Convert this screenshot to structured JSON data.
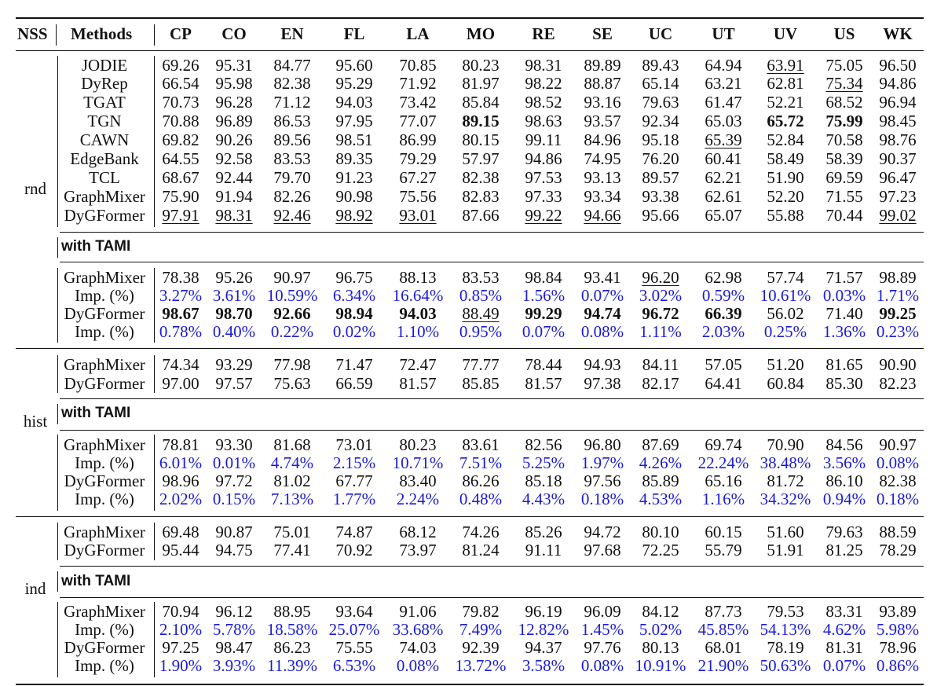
{
  "header": {
    "nss": "NSS",
    "methods": "Methods",
    "datasets": [
      "CP",
      "CO",
      "EN",
      "FL",
      "LA",
      "MO",
      "RE",
      "SE",
      "UC",
      "UT",
      "UV",
      "US",
      "WK"
    ]
  },
  "tami_label": "with TAMI",
  "sections": [
    {
      "nss": "rnd",
      "base_rows": [
        {
          "method": "JODIE",
          "values": [
            "69.26",
            "95.31",
            "84.77",
            "95.60",
            "70.85",
            "80.23",
            "98.31",
            "89.89",
            "89.43",
            "64.94",
            "63.91",
            "75.05",
            "96.50"
          ],
          "styles": [
            "",
            "",
            "",
            "",
            "",
            "",
            "",
            "",
            "",
            "",
            "u",
            "",
            ""
          ]
        },
        {
          "method": "DyRep",
          "values": [
            "66.54",
            "95.98",
            "82.38",
            "95.29",
            "71.92",
            "81.97",
            "98.22",
            "88.87",
            "65.14",
            "63.21",
            "62.81",
            "75.34",
            "94.86"
          ],
          "styles": [
            "",
            "",
            "",
            "",
            "",
            "",
            "",
            "",
            "",
            "",
            "",
            "u",
            ""
          ]
        },
        {
          "method": "TGAT",
          "values": [
            "70.73",
            "96.28",
            "71.12",
            "94.03",
            "73.42",
            "85.84",
            "98.52",
            "93.16",
            "79.63",
            "61.47",
            "52.21",
            "68.52",
            "96.94"
          ],
          "styles": [
            "",
            "",
            "",
            "",
            "",
            "",
            "",
            "",
            "",
            "",
            "",
            "",
            ""
          ]
        },
        {
          "method": "TGN",
          "values": [
            "70.88",
            "96.89",
            "86.53",
            "97.95",
            "77.07",
            "89.15",
            "98.63",
            "93.57",
            "92.34",
            "65.03",
            "65.72",
            "75.99",
            "98.45"
          ],
          "styles": [
            "",
            "",
            "",
            "",
            "",
            "b",
            "",
            "",
            "",
            "",
            "b",
            "b",
            ""
          ]
        },
        {
          "method": "CAWN",
          "values": [
            "69.82",
            "90.26",
            "89.56",
            "98.51",
            "86.99",
            "80.15",
            "99.11",
            "84.96",
            "95.18",
            "65.39",
            "52.84",
            "70.58",
            "98.76"
          ],
          "styles": [
            "",
            "",
            "",
            "",
            "",
            "",
            "",
            "",
            "",
            "u",
            "",
            "",
            ""
          ]
        },
        {
          "method": "EdgeBank",
          "values": [
            "64.55",
            "92.58",
            "83.53",
            "89.35",
            "79.29",
            "57.97",
            "94.86",
            "74.95",
            "76.20",
            "60.41",
            "58.49",
            "58.39",
            "90.37"
          ],
          "styles": [
            "",
            "",
            "",
            "",
            "",
            "",
            "",
            "",
            "",
            "",
            "",
            "",
            ""
          ]
        },
        {
          "method": "TCL",
          "values": [
            "68.67",
            "92.44",
            "79.70",
            "91.23",
            "67.27",
            "82.38",
            "97.53",
            "93.13",
            "89.57",
            "62.21",
            "51.90",
            "69.59",
            "96.47"
          ],
          "styles": [
            "",
            "",
            "",
            "",
            "",
            "",
            "",
            "",
            "",
            "",
            "",
            "",
            ""
          ]
        },
        {
          "method": "GraphMixer",
          "values": [
            "75.90",
            "91.94",
            "82.26",
            "90.98",
            "75.56",
            "82.83",
            "97.33",
            "93.34",
            "93.38",
            "62.61",
            "52.20",
            "71.55",
            "97.23"
          ],
          "styles": [
            "",
            "",
            "",
            "",
            "",
            "",
            "",
            "",
            "",
            "",
            "",
            "",
            ""
          ]
        },
        {
          "method": "DyGFormer",
          "values": [
            "97.91",
            "98.31",
            "92.46",
            "98.92",
            "93.01",
            "87.66",
            "99.22",
            "94.66",
            "95.66",
            "65.07",
            "55.88",
            "70.44",
            "99.02"
          ],
          "styles": [
            "u",
            "u",
            "u",
            "u",
            "u",
            "",
            "u",
            "u",
            "",
            "",
            "",
            "",
            "u"
          ]
        }
      ],
      "tami_rows": [
        {
          "method": "GraphMixer",
          "values": [
            "78.38",
            "95.26",
            "90.97",
            "96.75",
            "88.13",
            "83.53",
            "98.84",
            "93.41",
            "96.20",
            "62.98",
            "57.74",
            "71.57",
            "98.89"
          ],
          "styles": [
            "",
            "",
            "",
            "",
            "",
            "",
            "",
            "",
            "u",
            "",
            "",
            "",
            ""
          ]
        },
        {
          "method": "Imp. (%)",
          "imp": true,
          "values": [
            "3.27%",
            "3.61%",
            "10.59%",
            "6.34%",
            "16.64%",
            "0.85%",
            "1.56%",
            "0.07%",
            "3.02%",
            "0.59%",
            "10.61%",
            "0.03%",
            "1.71%"
          ],
          "styles": [
            "",
            "",
            "",
            "",
            "",
            "",
            "",
            "",
            "",
            "",
            "",
            "",
            ""
          ]
        },
        {
          "method": "DyGFormer",
          "values": [
            "98.67",
            "98.70",
            "92.66",
            "98.94",
            "94.03",
            "88.49",
            "99.29",
            "94.74",
            "96.72",
            "66.39",
            "56.02",
            "71.40",
            "99.25"
          ],
          "styles": [
            "b",
            "b",
            "b",
            "b",
            "b",
            "u",
            "b",
            "b",
            "b",
            "b",
            "",
            "",
            "b"
          ]
        },
        {
          "method": "Imp. (%)",
          "imp": true,
          "values": [
            "0.78%",
            "0.40%",
            "0.22%",
            "0.02%",
            "1.10%",
            "0.95%",
            "0.07%",
            "0.08%",
            "1.11%",
            "2.03%",
            "0.25%",
            "1.36%",
            "0.23%"
          ],
          "styles": [
            "",
            "",
            "",
            "",
            "",
            "",
            "",
            "",
            "",
            "",
            "",
            "",
            ""
          ]
        }
      ]
    },
    {
      "nss": "hist",
      "base_rows": [
        {
          "method": "GraphMixer",
          "values": [
            "74.34",
            "93.29",
            "77.98",
            "71.47",
            "72.47",
            "77.77",
            "78.44",
            "94.93",
            "84.11",
            "57.05",
            "51.20",
            "81.65",
            "90.90"
          ],
          "styles": [
            "",
            "",
            "",
            "",
            "",
            "",
            "",
            "",
            "",
            "",
            "",
            "",
            ""
          ]
        },
        {
          "method": "DyGFormer",
          "values": [
            "97.00",
            "97.57",
            "75.63",
            "66.59",
            "81.57",
            "85.85",
            "81.57",
            "97.38",
            "82.17",
            "64.41",
            "60.84",
            "85.30",
            "82.23"
          ],
          "styles": [
            "",
            "",
            "",
            "",
            "",
            "",
            "",
            "",
            "",
            "",
            "",
            "",
            ""
          ]
        }
      ],
      "tami_rows": [
        {
          "method": "GraphMixer",
          "values": [
            "78.81",
            "93.30",
            "81.68",
            "73.01",
            "80.23",
            "83.61",
            "82.56",
            "96.80",
            "87.69",
            "69.74",
            "70.90",
            "84.56",
            "90.97"
          ],
          "styles": [
            "",
            "",
            "",
            "",
            "",
            "",
            "",
            "",
            "",
            "",
            "",
            "",
            ""
          ]
        },
        {
          "method": "Imp. (%)",
          "imp": true,
          "values": [
            "6.01%",
            "0.01%",
            "4.74%",
            "2.15%",
            "10.71%",
            "7.51%",
            "5.25%",
            "1.97%",
            "4.26%",
            "22.24%",
            "38.48%",
            "3.56%",
            "0.08%"
          ],
          "styles": [
            "",
            "",
            "",
            "",
            "",
            "",
            "",
            "",
            "",
            "",
            "",
            "",
            ""
          ]
        },
        {
          "method": "DyGFormer",
          "values": [
            "98.96",
            "97.72",
            "81.02",
            "67.77",
            "83.40",
            "86.26",
            "85.18",
            "97.56",
            "85.89",
            "65.16",
            "81.72",
            "86.10",
            "82.38"
          ],
          "styles": [
            "",
            "",
            "",
            "",
            "",
            "",
            "",
            "",
            "",
            "",
            "",
            "",
            ""
          ]
        },
        {
          "method": "Imp. (%)",
          "imp": true,
          "values": [
            "2.02%",
            "0.15%",
            "7.13%",
            "1.77%",
            "2.24%",
            "0.48%",
            "4.43%",
            "0.18%",
            "4.53%",
            "1.16%",
            "34.32%",
            "0.94%",
            "0.18%"
          ],
          "styles": [
            "",
            "",
            "",
            "",
            "",
            "",
            "",
            "",
            "",
            "",
            "",
            "",
            ""
          ]
        }
      ]
    },
    {
      "nss": "ind",
      "base_rows": [
        {
          "method": "GraphMixer",
          "values": [
            "69.48",
            "90.87",
            "75.01",
            "74.87",
            "68.12",
            "74.26",
            "85.26",
            "94.72",
            "80.10",
            "60.15",
            "51.60",
            "79.63",
            "88.59"
          ],
          "styles": [
            "",
            "",
            "",
            "",
            "",
            "",
            "",
            "",
            "",
            "",
            "",
            "",
            ""
          ]
        },
        {
          "method": "DyGFormer",
          "values": [
            "95.44",
            "94.75",
            "77.41",
            "70.92",
            "73.97",
            "81.24",
            "91.11",
            "97.68",
            "72.25",
            "55.79",
            "51.91",
            "81.25",
            "78.29"
          ],
          "styles": [
            "",
            "",
            "",
            "",
            "",
            "",
            "",
            "",
            "",
            "",
            "",
            "",
            ""
          ]
        }
      ],
      "tami_rows": [
        {
          "method": "GraphMixer",
          "values": [
            "70.94",
            "96.12",
            "88.95",
            "93.64",
            "91.06",
            "79.82",
            "96.19",
            "96.09",
            "84.12",
            "87.73",
            "79.53",
            "83.31",
            "93.89"
          ],
          "styles": [
            "",
            "",
            "",
            "",
            "",
            "",
            "",
            "",
            "",
            "",
            "",
            "",
            ""
          ]
        },
        {
          "method": "Imp. (%)",
          "imp": true,
          "values": [
            "2.10%",
            "5.78%",
            "18.58%",
            "25.07%",
            "33.68%",
            "7.49%",
            "12.82%",
            "1.45%",
            "5.02%",
            "45.85%",
            "54.13%",
            "4.62%",
            "5.98%"
          ],
          "styles": [
            "",
            "",
            "",
            "",
            "",
            "",
            "",
            "",
            "",
            "",
            "",
            "",
            ""
          ]
        },
        {
          "method": "DyGFormer",
          "values": [
            "97.25",
            "98.47",
            "86.23",
            "75.55",
            "74.03",
            "92.39",
            "94.37",
            "97.76",
            "80.13",
            "68.01",
            "78.19",
            "81.31",
            "78.96"
          ],
          "styles": [
            "",
            "",
            "",
            "",
            "",
            "",
            "",
            "",
            "",
            "",
            "",
            "",
            ""
          ]
        },
        {
          "method": "Imp. (%)",
          "imp": true,
          "values": [
            "1.90%",
            "3.93%",
            "11.39%",
            "6.53%",
            "0.08%",
            "13.72%",
            "3.58%",
            "0.08%",
            "10.91%",
            "21.90%",
            "50.63%",
            "0.07%",
            "0.86%"
          ],
          "styles": [
            "",
            "",
            "",
            "",
            "",
            "",
            "",
            "",
            "",
            "",
            "",
            "",
            ""
          ]
        }
      ]
    }
  ],
  "colors": {
    "improvement": "#1a1adb",
    "text": "#111111"
  }
}
